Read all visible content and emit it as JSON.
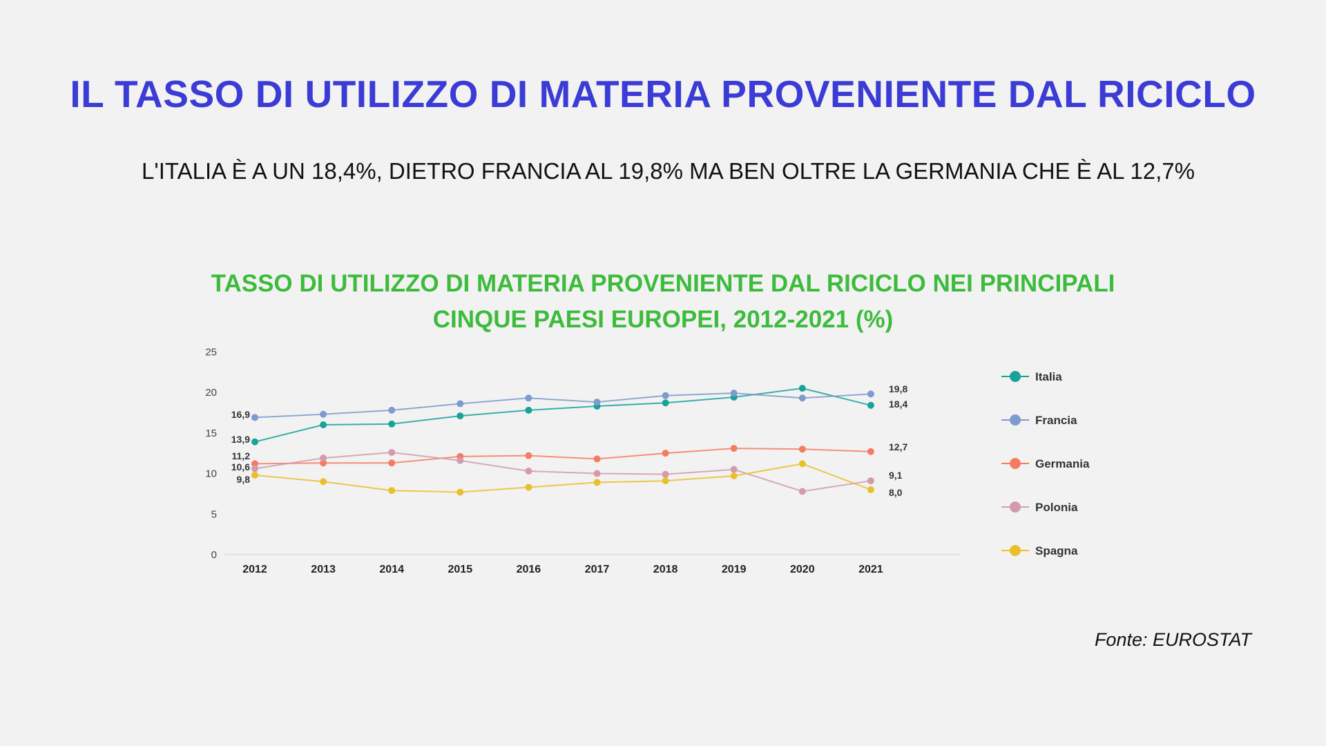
{
  "header": {
    "title": "IL TASSO DI UTILIZZO DI MATERIA PROVENIENTE DAL RICICLO",
    "subtitle": "L'ITALIA È A UN 18,4%, DIETRO FRANCIA AL 19,8% MA BEN OLTRE LA GERMANIA CHE È AL 12,7%"
  },
  "chart_title": {
    "line1": "TASSO DI UTILIZZO DI MATERIA PROVENIENTE DAL RICICLO NEI PRINCIPALI",
    "line2": "CINQUE PAESI EUROPEI, 2012-2021 (%)"
  },
  "source": "Fonte: EUROSTAT",
  "chart_data": {
    "type": "line",
    "title": "TASSO DI UTILIZZO DI MATERIA PROVENIENTE DAL RICICLO NEI PRINCIPALI CINQUE PAESI EUROPEI, 2012-2021 (%)",
    "categories": [
      "2012",
      "2013",
      "2014",
      "2015",
      "2016",
      "2017",
      "2018",
      "2019",
      "2020",
      "2021"
    ],
    "ylim": [
      0,
      25
    ],
    "yticks": [
      0,
      5,
      10,
      15,
      20,
      25
    ],
    "grid": false,
    "legend_position": "right",
    "series": [
      {
        "name": "Italia",
        "color": "#17a39a",
        "values": [
          13.9,
          16.0,
          16.1,
          17.1,
          17.8,
          18.3,
          18.7,
          19.4,
          20.5,
          18.4
        ],
        "labels": {
          "first": "13,9",
          "last": "18,4"
        }
      },
      {
        "name": "Francia",
        "color": "#7d9bcc",
        "values": [
          16.9,
          17.3,
          17.8,
          18.6,
          19.3,
          18.8,
          19.6,
          19.9,
          19.3,
          19.8
        ],
        "labels": {
          "first": "16,9",
          "last": "19,8"
        }
      },
      {
        "name": "Germania",
        "color": "#f47c63",
        "values": [
          11.2,
          11.3,
          11.3,
          12.1,
          12.2,
          11.8,
          12.5,
          13.1,
          13.0,
          12.7
        ],
        "labels": {
          "first": "11,2",
          "last": "12,7"
        }
      },
      {
        "name": "Polonia",
        "color": "#d49aae",
        "values": [
          10.6,
          11.9,
          12.6,
          11.6,
          10.3,
          10.0,
          9.9,
          10.5,
          7.8,
          9.1
        ],
        "labels": {
          "first": "10,6",
          "last": "9,1"
        }
      },
      {
        "name": "Spagna",
        "color": "#e9c02c",
        "values": [
          9.8,
          9.0,
          7.9,
          7.7,
          8.3,
          8.9,
          9.1,
          9.7,
          11.2,
          8.0
        ],
        "labels": {
          "first": "9,8",
          "last": "8,0"
        }
      }
    ]
  }
}
